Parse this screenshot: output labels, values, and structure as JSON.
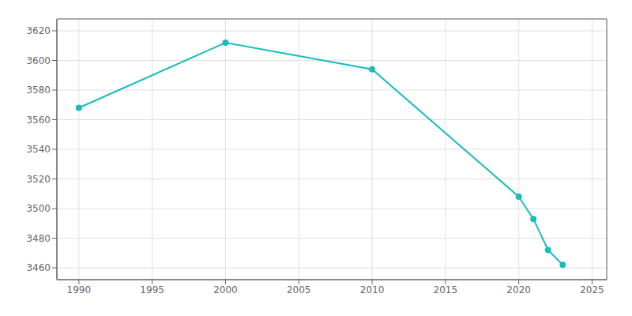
{
  "chart_data": {
    "type": "line",
    "x": [
      1990,
      2000,
      2010,
      2020,
      2021,
      2022,
      2023
    ],
    "series": [
      {
        "color": "#1abcbc",
        "marker": "circle",
        "values": [
          3568,
          3612,
          3594,
          3508,
          3493,
          3472,
          3462
        ]
      }
    ],
    "xlim": [
      1988.5,
      2026
    ],
    "ylim": [
      3452,
      3628
    ],
    "xticks": [
      1990,
      1995,
      2000,
      2005,
      2010,
      2015,
      2020,
      2025
    ],
    "yticks": [
      3460,
      3480,
      3500,
      3520,
      3540,
      3560,
      3580,
      3600,
      3620
    ],
    "grid": true
  }
}
